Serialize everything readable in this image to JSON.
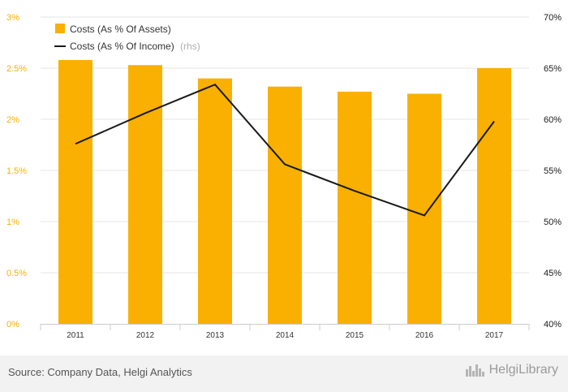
{
  "chart_data": {
    "type": "bar",
    "categories": [
      "2011",
      "2012",
      "2013",
      "2014",
      "2015",
      "2016",
      "2017"
    ],
    "series": [
      {
        "name": "Costs (As % Of Assets)",
        "type": "bar",
        "axis": "left",
        "color": "#f9b000",
        "values": [
          2.58,
          2.53,
          2.4,
          2.32,
          2.27,
          2.25,
          2.5
        ]
      },
      {
        "name": "Costs (As % Of Income)",
        "type": "line",
        "axis": "right",
        "color": "#1a1a1a",
        "values": [
          57.6,
          60.6,
          63.4,
          55.6,
          53.0,
          50.6,
          59.8
        ]
      }
    ],
    "legend_rhs_note": "(rhs)",
    "y_left": {
      "ylim": [
        0,
        3
      ],
      "ticks": [
        "0%",
        "0.5%",
        "1%",
        "1.5%",
        "2%",
        "2.5%",
        "3%"
      ],
      "tick_values": [
        0,
        0.5,
        1,
        1.5,
        2,
        2.5,
        3
      ],
      "color": "#f9b000"
    },
    "y_right": {
      "ylim": [
        40,
        70
      ],
      "ticks": [
        "40%",
        "45%",
        "50%",
        "55%",
        "60%",
        "65%",
        "70%"
      ],
      "tick_values": [
        40,
        45,
        50,
        55,
        60,
        65,
        70
      ],
      "color": "#1a1a1a"
    },
    "grid": true,
    "legend": "top-left"
  },
  "footer": {
    "source": "Source: Company Data, Helgi Analytics",
    "logo_text": "HelgiLibrary"
  },
  "icons": {
    "logo_icon": "skyline-icon"
  }
}
